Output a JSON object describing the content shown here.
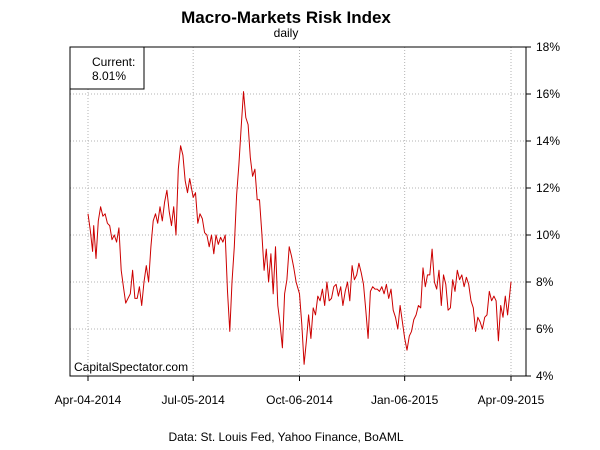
{
  "chart_data": {
    "type": "line",
    "title": "Macro-Markets Risk Index",
    "subtitle": "daily",
    "source": "Data: St. Louis Fed, Yahoo Finance, BoAML",
    "watermark": "CapitalSpectator.com",
    "legend": {
      "label": "Current:",
      "value": "8.01%",
      "placement": "top-left"
    },
    "x_start": "2014-04-04",
    "x_end": "2015-04-09",
    "x_ticks": [
      {
        "date": "2014-04-04",
        "label": "Apr-04-2014"
      },
      {
        "date": "2014-07-05",
        "label": "Jul-05-2014"
      },
      {
        "date": "2014-10-06",
        "label": "Oct-06-2014"
      },
      {
        "date": "2015-01-06",
        "label": "Jan-06-2015"
      },
      {
        "date": "2015-04-09",
        "label": "Apr-09-2015"
      }
    ],
    "ylim": [
      4,
      18
    ],
    "y_ticks": [
      4,
      6,
      8,
      10,
      12,
      14,
      16,
      18
    ],
    "y_tick_labels": [
      "4%",
      "6%",
      "8%",
      "10%",
      "12%",
      "14%",
      "16%",
      "18%"
    ],
    "y_axis_side": "right",
    "grid": true,
    "line_color": "#cc0000",
    "series": [
      {
        "x": [
          "2014-04-04",
          "2014-04-06",
          "2014-04-08",
          "2014-04-09",
          "2014-04-11",
          "2014-04-13",
          "2014-04-15",
          "2014-04-17",
          "2014-04-19",
          "2014-04-21",
          "2014-04-23",
          "2014-04-25",
          "2014-04-27",
          "2014-04-29",
          "2014-05-01",
          "2014-05-03",
          "2014-05-05",
          "2014-05-07",
          "2014-05-09",
          "2014-05-11",
          "2014-05-13",
          "2014-05-15",
          "2014-05-17",
          "2014-05-19",
          "2014-05-21",
          "2014-05-23",
          "2014-05-25",
          "2014-05-27",
          "2014-05-29",
          "2014-05-31",
          "2014-06-02",
          "2014-06-04",
          "2014-06-06",
          "2014-06-08",
          "2014-06-10",
          "2014-06-12",
          "2014-06-14",
          "2014-06-16",
          "2014-06-18",
          "2014-06-20",
          "2014-06-22",
          "2014-06-24",
          "2014-06-26",
          "2014-06-28",
          "2014-06-30",
          "2014-07-02",
          "2014-07-05",
          "2014-07-07",
          "2014-07-09",
          "2014-07-11",
          "2014-07-13",
          "2014-07-15",
          "2014-07-17",
          "2014-07-19",
          "2014-07-21",
          "2014-07-23",
          "2014-07-25",
          "2014-07-27",
          "2014-07-29",
          "2014-07-31",
          "2014-08-02",
          "2014-08-04",
          "2014-08-06",
          "2014-08-08",
          "2014-08-10",
          "2014-08-12",
          "2014-08-14",
          "2014-08-16",
          "2014-08-18",
          "2014-08-20",
          "2014-08-22",
          "2014-08-24",
          "2014-08-26",
          "2014-08-28",
          "2014-08-30",
          "2014-09-01",
          "2014-09-03",
          "2014-09-05",
          "2014-09-07",
          "2014-09-09",
          "2014-09-11",
          "2014-09-13",
          "2014-09-15",
          "2014-09-17",
          "2014-09-19",
          "2014-09-21",
          "2014-09-23",
          "2014-09-25",
          "2014-09-27",
          "2014-09-29",
          "2014-10-01",
          "2014-10-03",
          "2014-10-06",
          "2014-10-08",
          "2014-10-10",
          "2014-10-12",
          "2014-10-14",
          "2014-10-16",
          "2014-10-18",
          "2014-10-20",
          "2014-10-22",
          "2014-10-24",
          "2014-10-26",
          "2014-10-28",
          "2014-10-30",
          "2014-11-01",
          "2014-11-03",
          "2014-11-05",
          "2014-11-07",
          "2014-11-09",
          "2014-11-11",
          "2014-11-13",
          "2014-11-15",
          "2014-11-17",
          "2014-11-19",
          "2014-11-21",
          "2014-11-23",
          "2014-11-25",
          "2014-11-27",
          "2014-11-29",
          "2014-12-01",
          "2014-12-03",
          "2014-12-05",
          "2014-12-07",
          "2014-12-09",
          "2014-12-11",
          "2014-12-13",
          "2014-12-15",
          "2014-12-17",
          "2014-12-19",
          "2014-12-21",
          "2014-12-23",
          "2014-12-25",
          "2014-12-27",
          "2014-12-29",
          "2014-12-31",
          "2015-01-02",
          "2015-01-06",
          "2015-01-08",
          "2015-01-10",
          "2015-01-12",
          "2015-01-14",
          "2015-01-16",
          "2015-01-18",
          "2015-01-20",
          "2015-01-22",
          "2015-01-24",
          "2015-01-26",
          "2015-01-28",
          "2015-01-30",
          "2015-02-01",
          "2015-02-03",
          "2015-02-05",
          "2015-02-07",
          "2015-02-09",
          "2015-02-11",
          "2015-02-13",
          "2015-02-15",
          "2015-02-17",
          "2015-02-19",
          "2015-02-21",
          "2015-02-23",
          "2015-02-25",
          "2015-02-27",
          "2015-03-01",
          "2015-03-03",
          "2015-03-05",
          "2015-03-07",
          "2015-03-09",
          "2015-03-11",
          "2015-03-13",
          "2015-03-15",
          "2015-03-17",
          "2015-03-19",
          "2015-03-21",
          "2015-03-23",
          "2015-03-25",
          "2015-03-27",
          "2015-03-29",
          "2015-03-31",
          "2015-04-02",
          "2015-04-04",
          "2015-04-06",
          "2015-04-09"
        ],
        "values": [
          10.9,
          10.2,
          9.3,
          10.4,
          9.0,
          10.6,
          11.2,
          10.8,
          10.9,
          10.5,
          10.4,
          9.8,
          10.0,
          9.7,
          10.3,
          8.5,
          7.8,
          7.1,
          7.3,
          7.5,
          8.5,
          7.3,
          7.3,
          7.8,
          7.0,
          8.0,
          8.7,
          8.0,
          9.5,
          10.6,
          10.9,
          10.5,
          11.2,
          10.6,
          11.4,
          11.9,
          11.0,
          10.4,
          11.2,
          10.0,
          12.8,
          13.8,
          13.4,
          12.3,
          11.8,
          12.4,
          11.6,
          11.8,
          10.5,
          10.9,
          10.7,
          10.1,
          10.0,
          9.5,
          10.0,
          9.2,
          10.0,
          9.6,
          9.9,
          9.7,
          10.0,
          7.6,
          5.9,
          8.0,
          9.5,
          11.7,
          13.0,
          14.6,
          16.1,
          15.0,
          14.7,
          13.3,
          12.5,
          12.8,
          11.5,
          11.5,
          10.1,
          8.5,
          9.4,
          8.0,
          9.2,
          7.5,
          9.5,
          7.0,
          6.2,
          5.2,
          7.5,
          8.1,
          9.5,
          9.1,
          8.6,
          8.0,
          7.5,
          6.2,
          4.5,
          5.5,
          6.6,
          5.6,
          6.9,
          6.6,
          7.4,
          7.2,
          7.7,
          7.0,
          8.0,
          7.2,
          7.3,
          7.8,
          7.9,
          7.4,
          7.8,
          7.0,
          7.6,
          8.0,
          7.2,
          8.7,
          8.1,
          8.3,
          8.8,
          8.4,
          7.9,
          6.8,
          5.6,
          7.6,
          7.8,
          7.7,
          7.7,
          7.6,
          7.8,
          7.5,
          7.9,
          7.3,
          7.7,
          6.8,
          6.5,
          6.0,
          7.0,
          5.6,
          5.1,
          5.7,
          5.9,
          6.4,
          6.6,
          7.0,
          6.9,
          8.6,
          7.8,
          8.3,
          8.3,
          9.4,
          8.0,
          7.7,
          8.5,
          7.0,
          8.3,
          7.9,
          6.8,
          6.9,
          8.1,
          7.6,
          8.5,
          8.1,
          8.3,
          7.8,
          8.2,
          7.9,
          7.2,
          6.9,
          5.9,
          6.5,
          6.3,
          6.0,
          6.5,
          6.6,
          7.6,
          7.2,
          7.4,
          7.2,
          5.5,
          7.0,
          6.5,
          7.4,
          6.6,
          8.01
        ]
      }
    ]
  }
}
